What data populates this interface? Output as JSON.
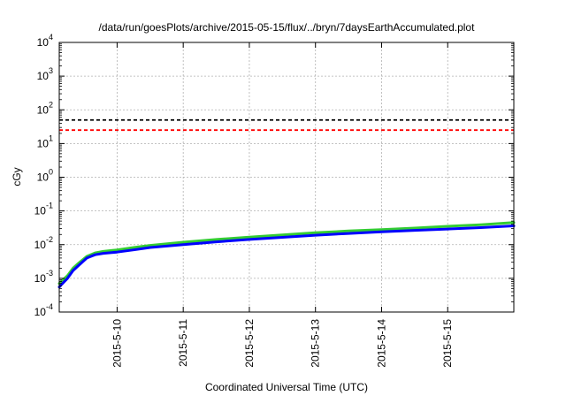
{
  "chart_data": {
    "type": "line",
    "title": "/data/run/goesPlots/archive/2015-05-15/flux/../bryn/7daysEarthAccumulated.plot",
    "xlabel": "Coordinated Universal Time (UTC)",
    "ylabel": "cGy",
    "yscale": "log",
    "ylim": [
      0.0001,
      10000
    ],
    "y_ticks": [
      {
        "value": 0.0001,
        "base": "10",
        "exp": "-4"
      },
      {
        "value": 0.001,
        "base": "10",
        "exp": "-3"
      },
      {
        "value": 0.01,
        "base": "10",
        "exp": "-2"
      },
      {
        "value": 0.1,
        "base": "10",
        "exp": "-1"
      },
      {
        "value": 1,
        "base": "10",
        "exp": "0"
      },
      {
        "value": 10,
        "base": "10",
        "exp": "1"
      },
      {
        "value": 100,
        "base": "10",
        "exp": "2"
      },
      {
        "value": 1000,
        "base": "10",
        "exp": "3"
      },
      {
        "value": 10000,
        "base": "10",
        "exp": "4"
      }
    ],
    "xlim": [
      "2015-05-09 03:00",
      "2015-05-16 00:00"
    ],
    "x_ticks": [
      {
        "value": "2015-05-10",
        "label": "2015-5-10"
      },
      {
        "value": "2015-05-11",
        "label": "2015-5-11"
      },
      {
        "value": "2015-05-12",
        "label": "2015-5-12"
      },
      {
        "value": "2015-05-13",
        "label": "2015-5-13"
      },
      {
        "value": "2015-05-14",
        "label": "2015-5-14"
      },
      {
        "value": "2015-05-15",
        "label": "2015-5-15"
      }
    ],
    "grid": true,
    "hlines": [
      {
        "y": 50,
        "color": "#000000",
        "style": "dashed"
      },
      {
        "y": 25,
        "color": "#ff0000",
        "style": "dashed"
      }
    ],
    "series": [
      {
        "color": "#33cc33",
        "x": [
          "2015-05-09 03:00",
          "2015-05-09 04:00",
          "2015-05-09 06:00",
          "2015-05-09 08:00",
          "2015-05-09 10:00",
          "2015-05-09 13:00",
          "2015-05-09 16:00",
          "2015-05-09 19:00",
          "2015-05-10 00:00",
          "2015-05-10 06:00",
          "2015-05-10 12:00",
          "2015-05-11 00:00",
          "2015-05-11 12:00",
          "2015-05-12 00:00",
          "2015-05-12 12:00",
          "2015-05-13 00:00",
          "2015-05-13 12:00",
          "2015-05-14 00:00",
          "2015-05-14 12:00",
          "2015-05-15 00:00",
          "2015-05-15 12:00",
          "2015-05-16 00:00"
        ],
        "values": [
          0.0007,
          0.00085,
          0.0012,
          0.002,
          0.0028,
          0.0045,
          0.0057,
          0.0063,
          0.007,
          0.0082,
          0.0095,
          0.0118,
          0.0142,
          0.0168,
          0.0195,
          0.0225,
          0.0255,
          0.028,
          0.031,
          0.035,
          0.039,
          0.045
        ]
      },
      {
        "color": "#0000ff",
        "x": [
          "2015-05-09 03:00",
          "2015-05-09 04:00",
          "2015-05-09 06:00",
          "2015-05-09 08:00",
          "2015-05-09 10:00",
          "2015-05-09 13:00",
          "2015-05-09 16:00",
          "2015-05-09 19:00",
          "2015-05-10 00:00",
          "2015-05-10 06:00",
          "2015-05-10 12:00",
          "2015-05-11 00:00",
          "2015-05-11 12:00",
          "2015-05-12 00:00",
          "2015-05-12 12:00",
          "2015-05-13 00:00",
          "2015-05-13 12:00",
          "2015-05-14 00:00",
          "2015-05-14 12:00",
          "2015-05-15 00:00",
          "2015-05-15 12:00",
          "2015-05-16 00:00"
        ],
        "values": [
          0.00055,
          0.00068,
          0.001,
          0.0017,
          0.0024,
          0.004,
          0.005,
          0.0055,
          0.006,
          0.007,
          0.0082,
          0.01,
          0.0121,
          0.0142,
          0.0165,
          0.019,
          0.0215,
          0.024,
          0.0265,
          0.029,
          0.032,
          0.036
        ]
      }
    ]
  }
}
